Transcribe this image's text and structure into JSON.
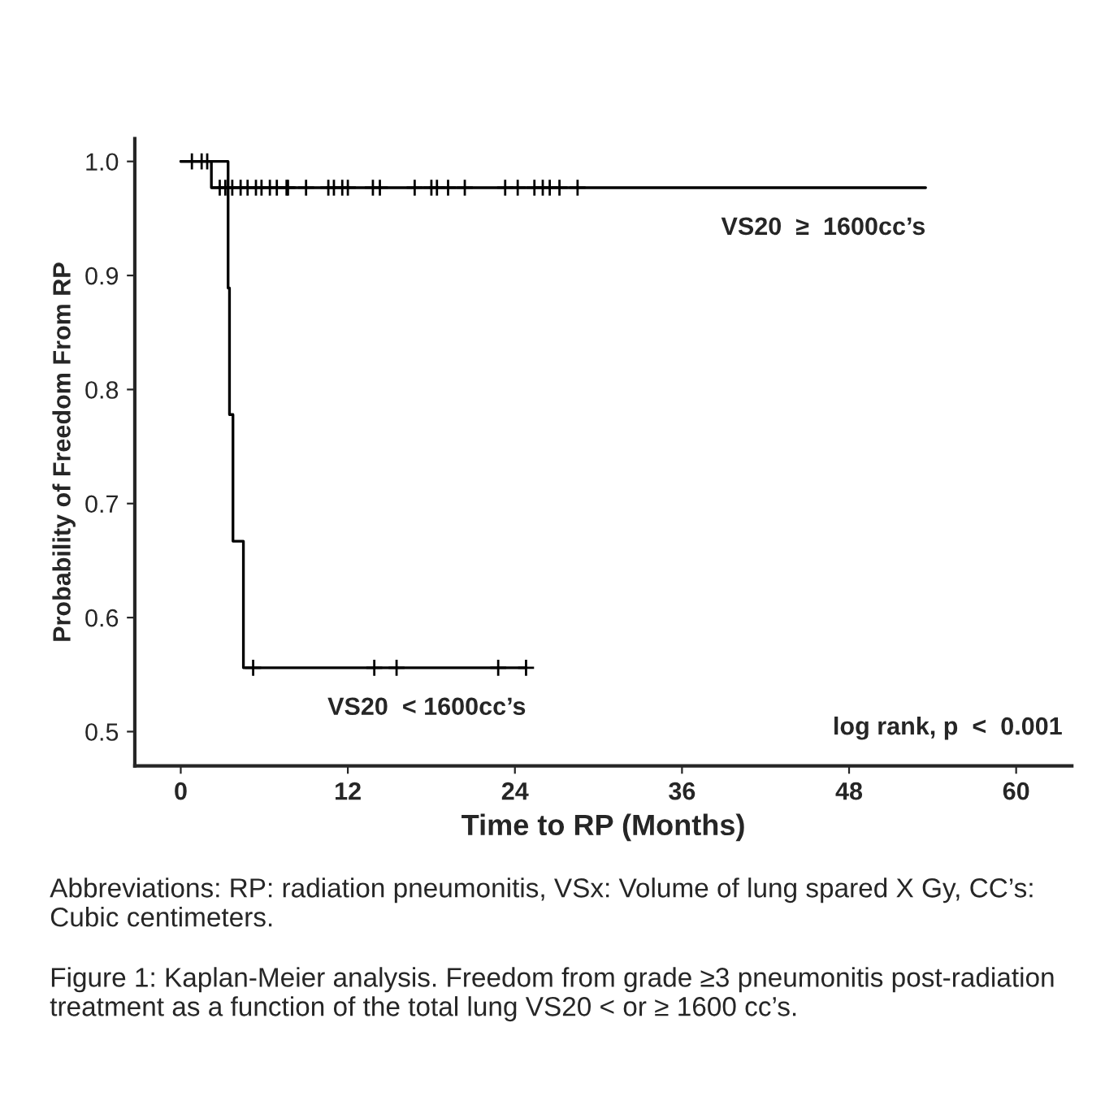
{
  "chart_data": {
    "type": "step",
    "xlabel": "Time to RP (Months)",
    "ylabel": "Probability of Freedom From RP",
    "xlim": [
      -3.3,
      64
    ],
    "xticks": [
      0,
      12,
      24,
      36,
      48,
      60
    ],
    "ylim": [
      0.47,
      1.02
    ],
    "yticks": [
      0.5,
      0.6,
      0.7,
      0.8,
      0.9,
      {
        "value": 1,
        "label": "1.0"
      }
    ],
    "grid": false,
    "legend": false,
    "series": [
      {
        "color": "#000000",
        "x": [
          0,
          2.2,
          53.5
        ],
        "values": [
          1.0,
          0.977,
          0.977
        ]
      },
      {
        "color": "#000000",
        "x": [
          0,
          3.4,
          3.5,
          3.75,
          4.5,
          24.8
        ],
        "values": [
          1.0,
          0.889,
          0.778,
          0.667,
          0.556,
          0.556
        ]
      },
      {
        "type": "scatter",
        "marker": "cross",
        "color": "#000000",
        "x": [
          0.8,
          1.5,
          1.9,
          2.8,
          3.2,
          3.7,
          4.3,
          4.8,
          5.4,
          5.8,
          6.4,
          6.9,
          7.6,
          7.7,
          9.0,
          10.6,
          11.0,
          11.6,
          12.0,
          13.8,
          14.3,
          16.8,
          18.0,
          18.4,
          19.2,
          20.4,
          23.3,
          24.2,
          25.4,
          26.0,
          26.5,
          27.2,
          28.5
        ],
        "values": [
          1.0,
          1.0,
          1.0,
          0.977,
          0.977,
          0.977,
          0.977,
          0.977,
          0.977,
          0.977,
          0.977,
          0.977,
          0.977,
          0.977,
          0.977,
          0.977,
          0.977,
          0.977,
          0.977,
          0.977,
          0.977,
          0.977,
          0.977,
          0.977,
          0.977,
          0.977,
          0.977,
          0.977,
          0.977,
          0.977,
          0.977,
          0.977,
          0.977
        ]
      },
      {
        "type": "scatter",
        "marker": "cross",
        "color": "#000000",
        "x": [
          5.2,
          13.9,
          15.5,
          22.8,
          24.8
        ],
        "values": [
          0.556,
          0.556,
          0.556,
          0.556,
          0.556
        ]
      }
    ],
    "annotations": [
      {
        "text": "VS20  ≥  1600cc’s",
        "x": 53.5,
        "y": 0.977
      },
      {
        "text": "VS20  < 1600cc’s",
        "x": 24.8,
        "y": 0.556
      },
      "log rank, p  <  0.001",
      "Abbreviations: RP: radiation pneumonitis, VSx: Volume of lung spared X Gy, CC’s: Cubic centimeters.",
      "Figure 1: Kaplan-Meier analysis. Freedom from grade ≥3 pneumonitis post-radiation treatment as a function of the total lung VS20 < or ≥ 1600 cc’s."
    ]
  }
}
